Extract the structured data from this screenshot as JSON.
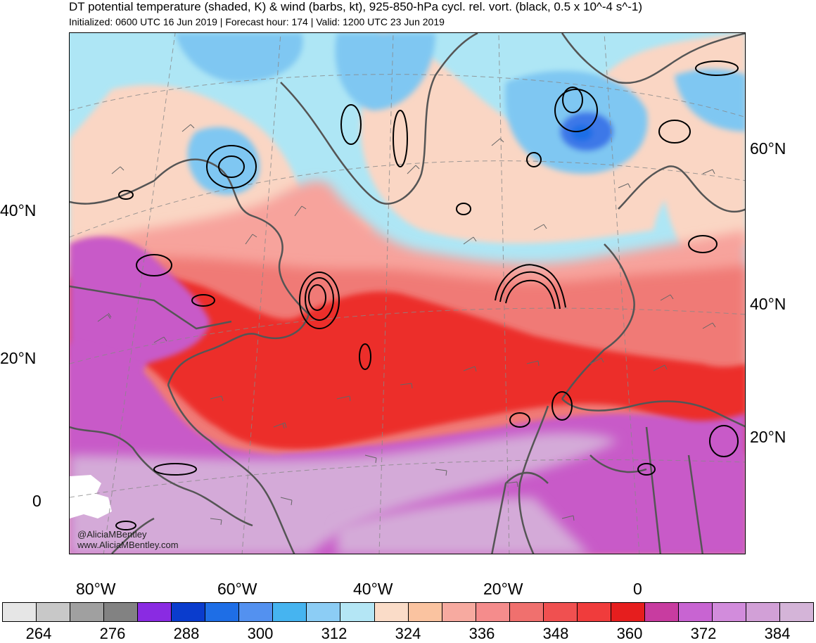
{
  "header": {
    "title": "DT potential temperature (shaded, K) & wind (barbs, kt), 925-850-hPa cycl. rel. vort. (black, 0.5 x 10^-4 s^-1)",
    "subtitle": "Initialized: 0600 UTC 16 Jun 2019 | Forecast hour: 174 | Valid: 1200 UTC 23 Jun 2019"
  },
  "map": {
    "left_lat_labels": [
      "40°N",
      "20°N",
      "0"
    ],
    "right_lat_labels": [
      "60°N",
      "40°N",
      "20°N"
    ],
    "lon_labels": [
      "80°W",
      "60°W",
      "40°W",
      "20°W",
      "0"
    ],
    "credit_line1": "@AliciaMBentley",
    "credit_line2": "www.AliciaMBentley.com",
    "colors": {
      "polar_blue": "#aee6f5",
      "mid_blue": "#7fc7f2",
      "deep_blue": "#3d78e8",
      "peach": "#fad6c4",
      "salmon": "#f7a39c",
      "red": "#ee4342",
      "deep_red": "#e81e1e",
      "magenta": "#c85ac8",
      "lavender": "#d4aad8",
      "land_outline": "#555555",
      "vort_contour": "#000000"
    }
  },
  "colorbar": {
    "colors": [
      "#e6e6e6",
      "#c8c8c8",
      "#a0a0a0",
      "#828282",
      "#8a2be2",
      "#0a3ccd",
      "#1e6ee6",
      "#5391f0",
      "#46b4f0",
      "#8ccdf5",
      "#b4e6f5",
      "#fadcc8",
      "#fac3a0",
      "#f7aaa0",
      "#f58c8c",
      "#f0706e",
      "#f05050",
      "#f03c3c",
      "#e61e1e",
      "#c83ca0",
      "#c864d2",
      "#d28cdc",
      "#d2a0d7",
      "#d4b4d8"
    ],
    "labels": [
      "264",
      "276",
      "288",
      "300",
      "312",
      "324",
      "336",
      "348",
      "360",
      "372",
      "384"
    ]
  }
}
